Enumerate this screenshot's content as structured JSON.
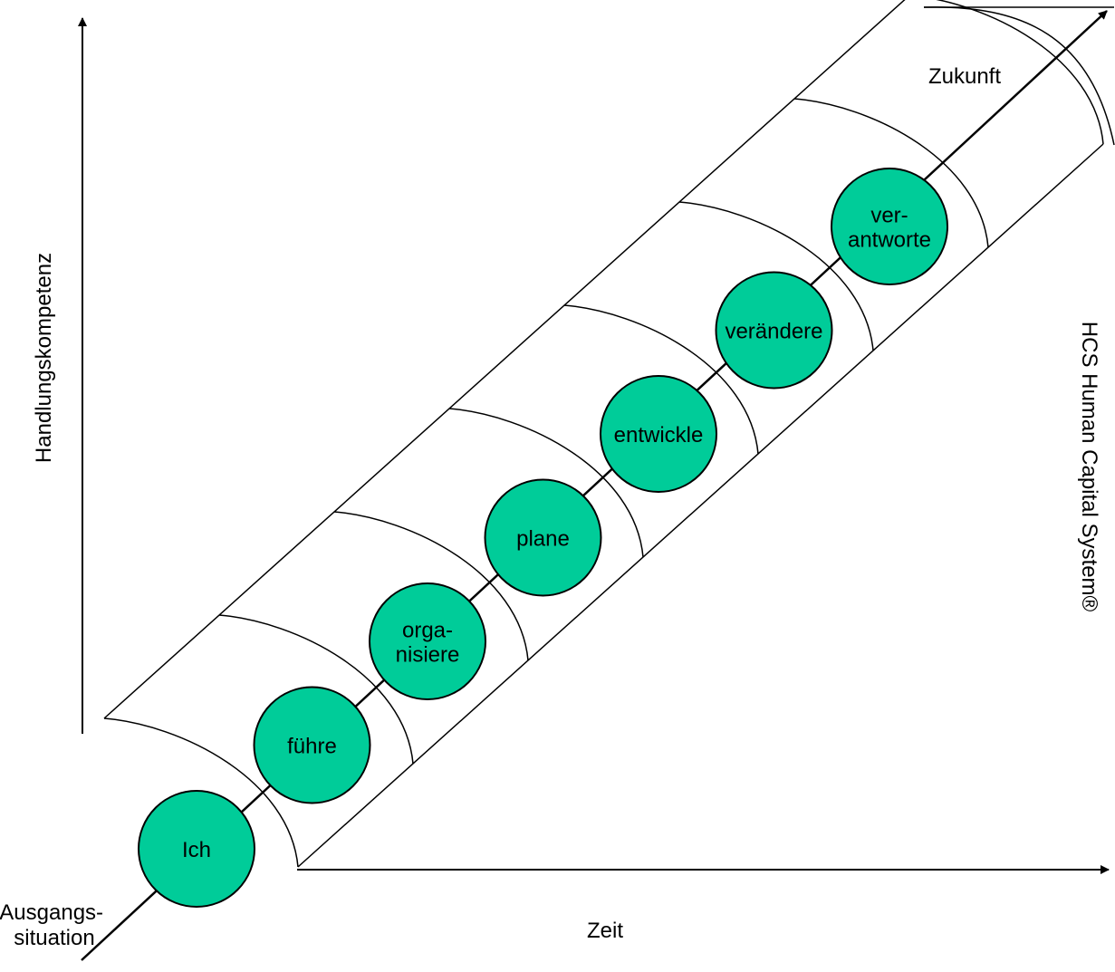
{
  "axes": {
    "y_label": "Handlungskompetenz",
    "x_label": "Zeit"
  },
  "start_label": [
    "Ausgangs-",
    "situation"
  ],
  "end_label": "Zukunft",
  "side_label": "HCS Human Capital System®",
  "colors": {
    "circle_fill": "#00CC99",
    "stroke": "#000000",
    "background": "#FFFFFF"
  },
  "stages": [
    {
      "lines": [
        "Ich"
      ]
    },
    {
      "lines": [
        "führe"
      ]
    },
    {
      "lines": [
        "orga-",
        "nisiere"
      ]
    },
    {
      "lines": [
        "plane"
      ]
    },
    {
      "lines": [
        "entwickle"
      ]
    },
    {
      "lines": [
        "verändere"
      ]
    },
    {
      "lines": [
        "ver-",
        "antworte"
      ]
    }
  ]
}
